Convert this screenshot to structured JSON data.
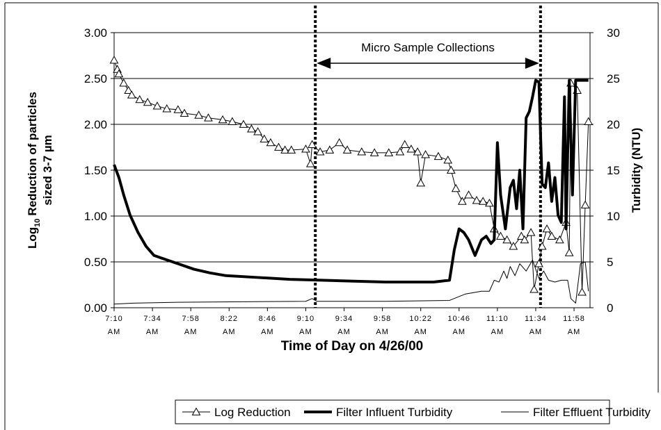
{
  "chart_data": {
    "type": "line",
    "xlabel": "Time of Day on 4/26/00",
    "ylabel": {
      "line1": [
        "Log",
        "10",
        "Reduction of particles"
      ],
      "line2": "sized 3-7 µm"
    },
    "y2label": "Turbidity (NTU)",
    "xlim": [
      430,
      728
    ],
    "xticks": [
      {
        "value": 430,
        "label": "7:10 AM"
      },
      {
        "value": 454,
        "label": "7:34 AM"
      },
      {
        "value": 478,
        "label": "7:58 AM"
      },
      {
        "value": 502,
        "label": "8:22 AM"
      },
      {
        "value": 526,
        "label": "8:46 AM"
      },
      {
        "value": 550,
        "label": "9:10 AM"
      },
      {
        "value": 574,
        "label": "9:34 AM"
      },
      {
        "value": 598,
        "label": "9:58 AM"
      },
      {
        "value": 622,
        "label": "10:22 AM"
      },
      {
        "value": 646,
        "label": "10:46 AM"
      },
      {
        "value": 670,
        "label": "11:10 AM"
      },
      {
        "value": 694,
        "label": "11:34 AM"
      },
      {
        "value": 718,
        "label": "11:58 AM"
      }
    ],
    "ylim": [
      0,
      3
    ],
    "yticks": [
      {
        "value": 0,
        "label": "0.00"
      },
      {
        "value": 0.5,
        "label": "0.50"
      },
      {
        "value": 1,
        "label": "1.00"
      },
      {
        "value": 1.5,
        "label": "1.50"
      },
      {
        "value": 2,
        "label": "2.00"
      },
      {
        "value": 2.5,
        "label": "2.50"
      },
      {
        "value": 3,
        "label": "3.00"
      }
    ],
    "y2lim": [
      0,
      30
    ],
    "y2ticks": [
      0,
      5,
      10,
      15,
      20,
      25,
      30
    ],
    "grid": true,
    "legend": "bottom",
    "annotations": [
      {
        "text": "Micro Sample Collections",
        "x": [
          556,
          697
        ]
      }
    ],
    "series": [
      {
        "name": "Log Reduction",
        "color": "#000000",
        "width": 1,
        "marker": "triangle",
        "x": [
          430,
          432,
          433,
          436,
          439,
          441,
          446,
          451,
          457,
          463,
          470,
          474,
          483,
          489,
          498,
          504,
          511,
          516,
          520,
          524,
          528,
          533,
          537,
          541,
          550,
          553,
          554,
          559,
          565,
          571,
          576,
          585,
          593,
          602,
          609,
          612,
          616,
          620,
          622,
          625,
          633,
          639,
          641,
          644,
          648,
          652,
          657,
          661,
          665,
          668,
          672,
          676,
          680,
          685,
          687,
          691,
          693,
          696,
          698,
          701,
          704,
          709,
          713,
          715,
          716,
          720,
          723,
          725,
          727
        ],
        "values": [
          2.7,
          2.6,
          2.55,
          2.45,
          2.37,
          2.32,
          2.27,
          2.24,
          2.2,
          2.17,
          2.16,
          2.12,
          2.1,
          2.07,
          2.05,
          2.03,
          2.0,
          1.95,
          1.92,
          1.84,
          1.8,
          1.75,
          1.72,
          1.72,
          1.73,
          1.57,
          1.78,
          1.7,
          1.72,
          1.8,
          1.72,
          1.7,
          1.69,
          1.69,
          1.7,
          1.78,
          1.73,
          1.7,
          1.36,
          1.67,
          1.65,
          1.61,
          1.5,
          1.3,
          1.16,
          1.23,
          1.17,
          1.16,
          1.14,
          0.86,
          0.78,
          0.74,
          0.67,
          0.78,
          0.74,
          0.82,
          0.2,
          0.48,
          0.67,
          0.86,
          0.78,
          0.74,
          0.93,
          0.6,
          2.45,
          2.37,
          0.17,
          1.12,
          2.03
        ]
      },
      {
        "name": "Filter Influent Turbidity",
        "color": "#000000",
        "width": 4,
        "axis": "y2",
        "x": [
          430,
          433,
          436,
          440,
          445,
          450,
          455,
          460,
          470,
          480,
          490,
          500,
          520,
          540,
          560,
          580,
          600,
          630,
          640,
          643,
          646,
          649,
          652,
          656,
          660,
          663,
          666,
          668,
          670,
          672,
          675,
          678,
          680,
          682,
          684,
          686,
          688,
          690,
          692,
          694,
          696,
          698,
          700,
          702,
          704,
          706,
          708,
          710,
          712,
          713,
          715,
          717,
          719,
          722,
          727
        ],
        "values": [
          15.6,
          14.2,
          12.3,
          10.1,
          8.2,
          6.7,
          5.7,
          5.4,
          4.8,
          4.2,
          3.8,
          3.5,
          3.3,
          3.1,
          3.0,
          2.9,
          2.8,
          2.8,
          3.0,
          6.3,
          8.6,
          8.2,
          7.4,
          5.7,
          7.4,
          7.8,
          7.0,
          7.4,
          18.0,
          12.3,
          8.6,
          13.1,
          13.9,
          10.8,
          15.0,
          8.6,
          20.7,
          21.4,
          23.0,
          24.8,
          24.6,
          13.5,
          13.1,
          15.8,
          11.6,
          14.2,
          10.1,
          9.3,
          23.0,
          8.6,
          24.8,
          12.3,
          24.8,
          24.8,
          24.8
        ]
      },
      {
        "name": "Filter Effluent Turbidity",
        "color": "#000000",
        "width": 1,
        "axis": "y2",
        "x": [
          430,
          442,
          470,
          550,
          554,
          557,
          600,
          640,
          650,
          660,
          665,
          668,
          671,
          674,
          676,
          678,
          681,
          684,
          688,
          692,
          696,
          699,
          702,
          706,
          710,
          714,
          716,
          719,
          722,
          725,
          727
        ],
        "values": [
          0.4,
          0.5,
          0.6,
          0.7,
          1.0,
          0.7,
          0.7,
          0.8,
          1.5,
          1.8,
          1.8,
          3.0,
          2.8,
          4.0,
          3.2,
          4.5,
          3.5,
          4.8,
          4.0,
          5.2,
          3.2,
          4.0,
          3.0,
          2.8,
          3.0,
          3.0,
          1.0,
          0.5,
          4.8,
          5.0,
          1.8
        ]
      }
    ]
  }
}
